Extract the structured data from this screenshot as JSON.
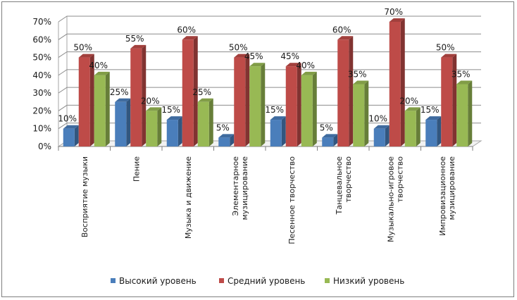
{
  "chart_data": {
    "type": "bar",
    "categories": [
      [
        "Восприятие музыки"
      ],
      [
        "Пение"
      ],
      [
        "Музыка и движение"
      ],
      [
        "Элементарное",
        "музицирование"
      ],
      [
        "Песенное творчество"
      ],
      [
        "Танцевальное",
        "творчество"
      ],
      [
        "Музыкально-игровое",
        "творчество"
      ],
      [
        "Импровизационное",
        "музицирование"
      ]
    ],
    "series": [
      {
        "name": "Высокий уровень",
        "color": "#4a7ebb",
        "values": [
          10,
          25,
          15,
          5,
          15,
          5,
          10,
          15
        ]
      },
      {
        "name": "Средний уровень",
        "color": "#be4b48",
        "values": [
          50,
          55,
          60,
          50,
          45,
          60,
          70,
          50
        ]
      },
      {
        "name": "Низкий уровень",
        "color": "#98b954",
        "values": [
          40,
          20,
          25,
          45,
          40,
          35,
          20,
          35
        ]
      }
    ],
    "y_ticks": [
      "0%",
      "10%",
      "20%",
      "30%",
      "40%",
      "50%",
      "60%",
      "70%"
    ],
    "ylim": [
      0,
      70
    ],
    "value_suffix": "%",
    "legend_position": "bottom",
    "grid": true,
    "style": "3d-clustered-column"
  }
}
